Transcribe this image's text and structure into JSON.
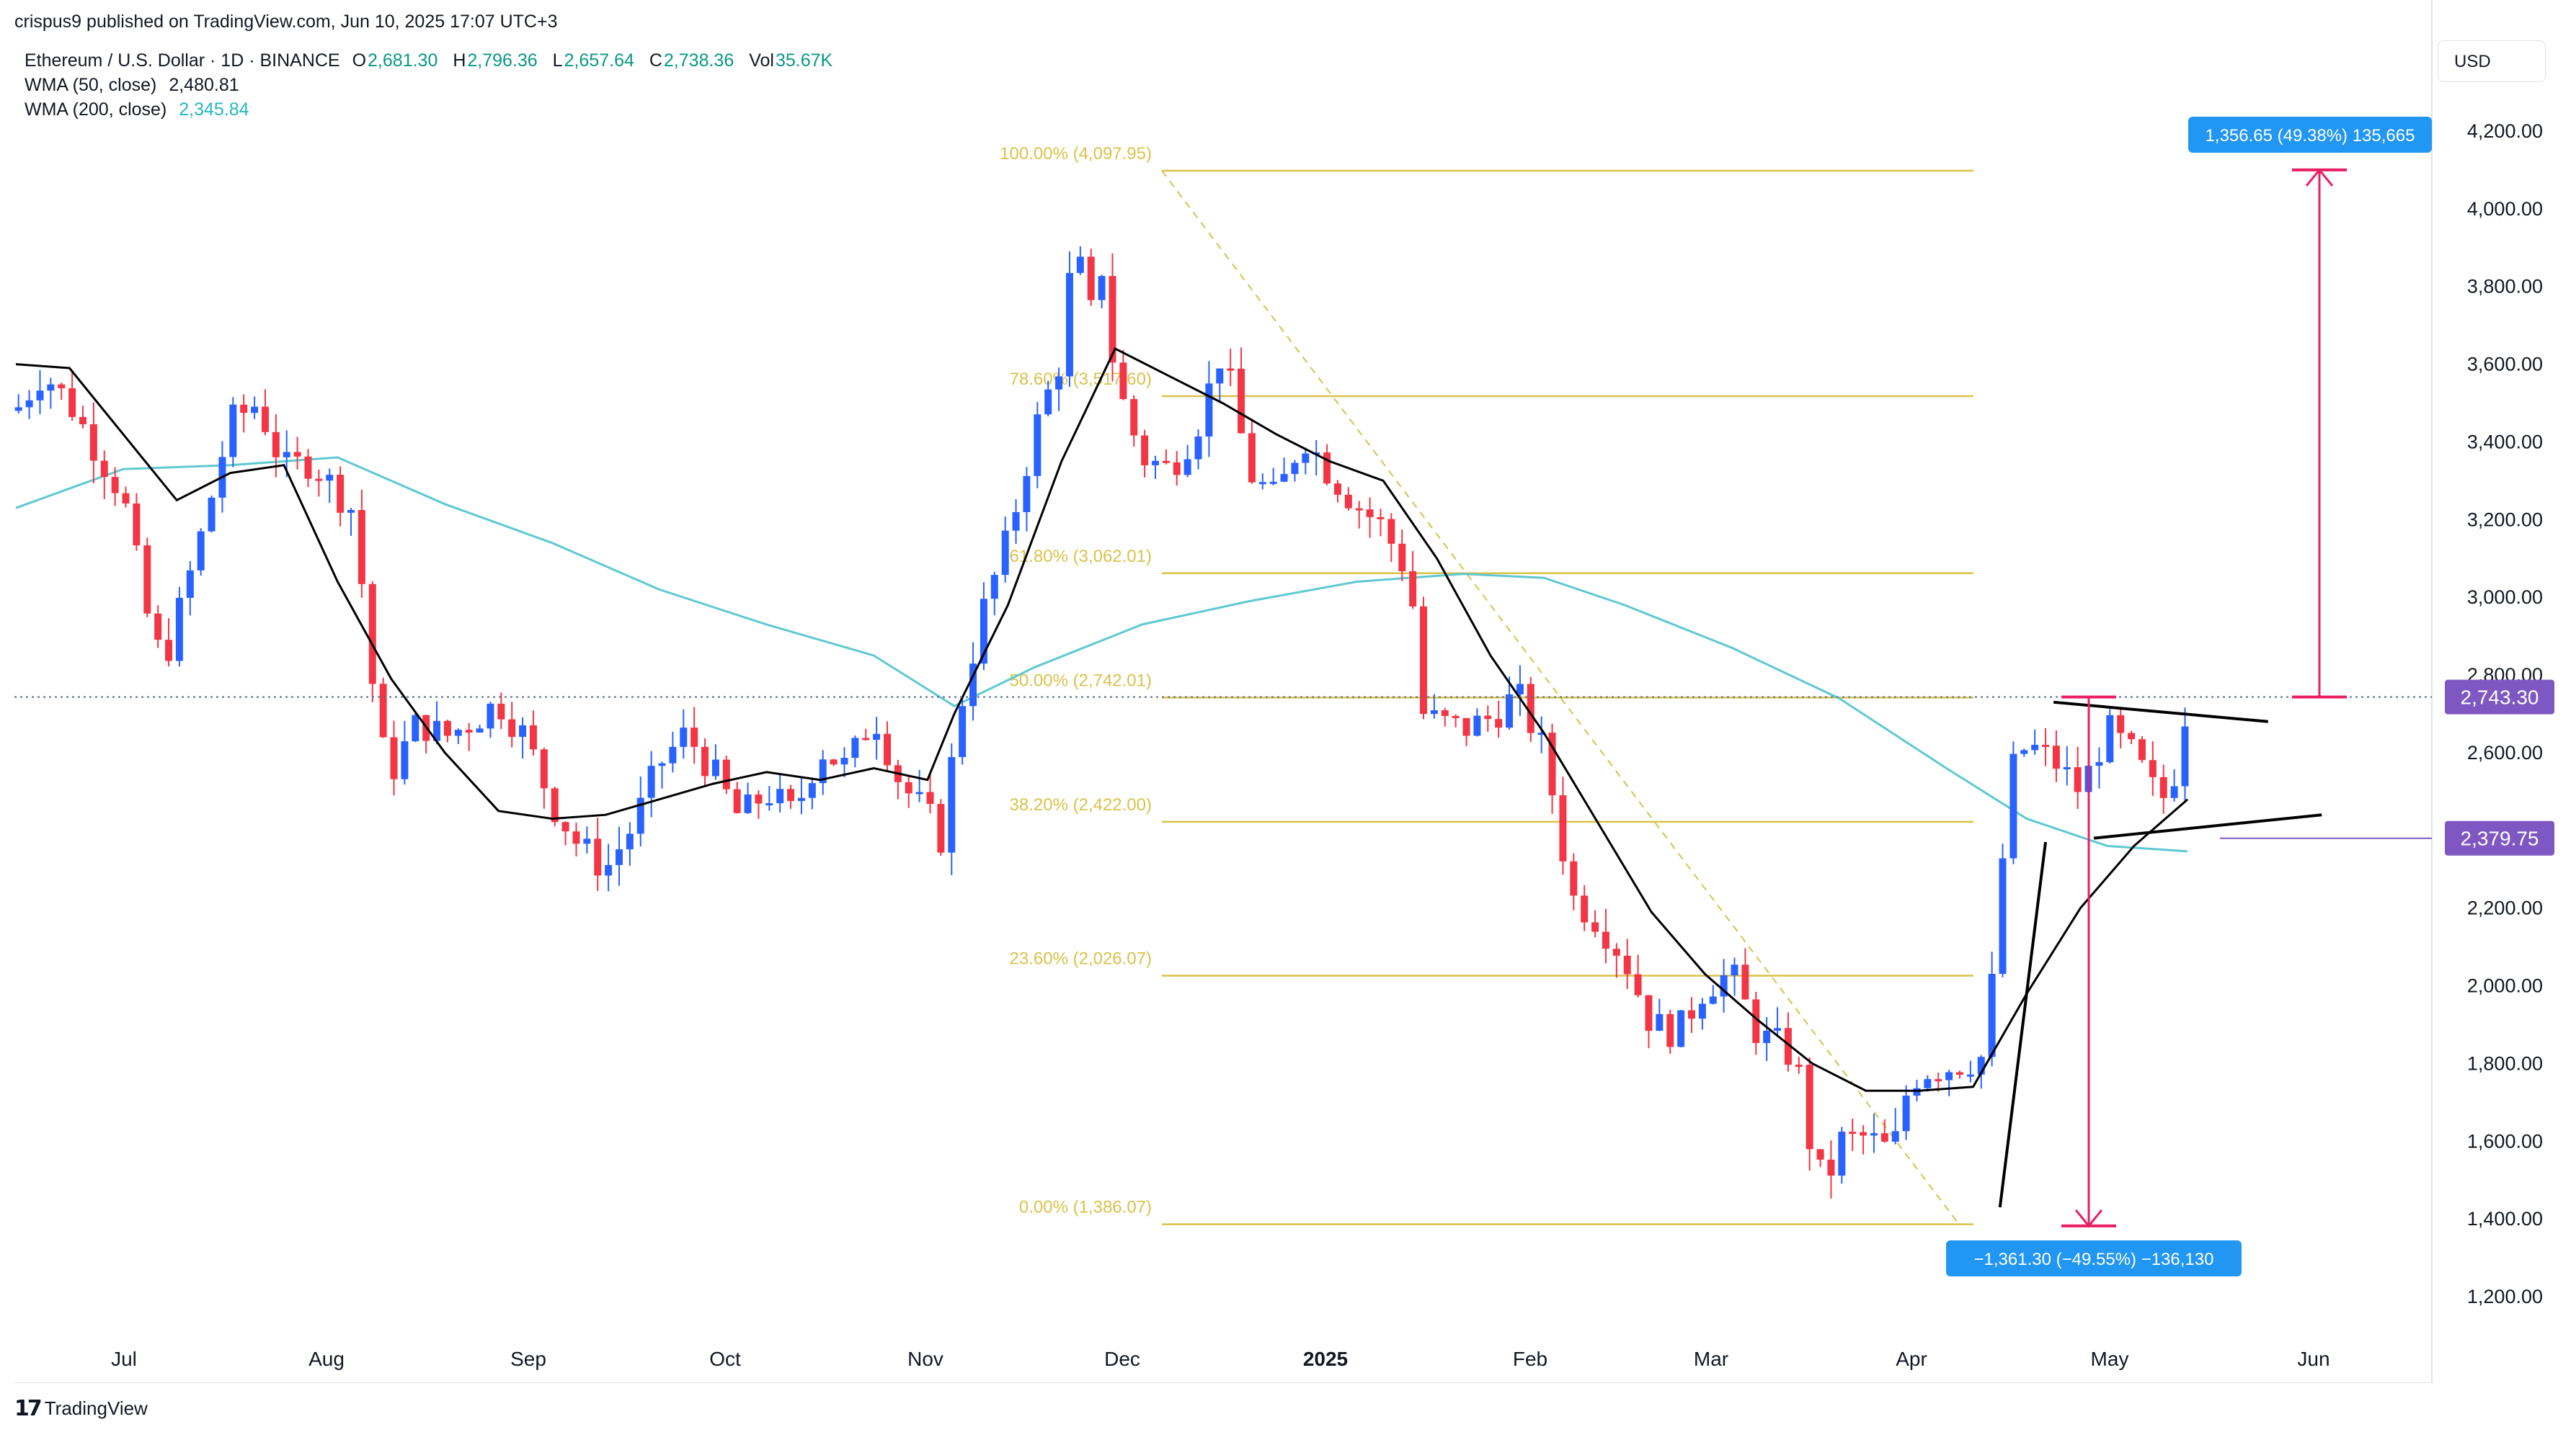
{
  "header": {
    "published_by": "crispus9 published on TradingView.com, Jun 10, 2025 17:07 UTC+3"
  },
  "legend": {
    "symbol": "Ethereum / U.S. Dollar · 1D · BINANCE",
    "open_label": "O",
    "open": "2,681.30",
    "high_label": "H",
    "high": "2,796.36",
    "low_label": "L",
    "low": "2,657.64",
    "close_label": "C",
    "close": "2,738.36",
    "vol_label": "Vol",
    "volume": "35.67K",
    "wma50_label": "WMA (50, close)",
    "wma50_value": "2,480.81",
    "wma200_label": "WMA (200, close)",
    "wma200_value": "2,345.84"
  },
  "currency": "USD",
  "footer": {
    "brand": "TradingView"
  },
  "colors": {
    "up": "#2962ff",
    "down": "#f23645",
    "wma50": "#000000",
    "wma200": "#5ec9d1",
    "fib": "#d9c24a",
    "measure_up": "#2196f3",
    "measure_line": "#e91e63",
    "price_tag": "#7e57c2"
  },
  "chart_data": {
    "type": "candlestick",
    "x_axis_labels": [
      "Jul",
      "Aug",
      "Sep",
      "Oct",
      "Nov",
      "Dec",
      "2025",
      "Feb",
      "Mar",
      "Apr",
      "May",
      "Jun"
    ],
    "y_ticks": [
      "1,200.00",
      "1,400.00",
      "1,600.00",
      "1,800.00",
      "2,000.00",
      "2,200.00",
      "2,400.00",
      "2,600.00",
      "2,800.00",
      "3,000.00",
      "3,200.00",
      "3,400.00",
      "3,600.00",
      "3,800.00",
      "4,000.00",
      "4,200.00"
    ],
    "y_tick_values": [
      1200,
      1400,
      1600,
      1800,
      2000,
      2200,
      2400,
      2600,
      2800,
      3000,
      3200,
      3400,
      3600,
      3800,
      4000,
      4200
    ],
    "ylim": [
      1100,
      4350
    ],
    "grid": false,
    "close_path": [
      [
        0,
        3480
      ],
      [
        10,
        3580
      ],
      [
        20,
        3500
      ],
      [
        30,
        3380
      ],
      [
        40,
        3260
      ],
      [
        50,
        2920
      ],
      [
        55,
        2830
      ],
      [
        60,
        2940
      ],
      [
        70,
        3180
      ],
      [
        80,
        3450
      ],
      [
        90,
        3500
      ],
      [
        100,
        3330
      ],
      [
        110,
        3350
      ],
      [
        125,
        3230
      ],
      [
        130,
        2990
      ],
      [
        135,
        2640
      ],
      [
        140,
        2550
      ],
      [
        150,
        2680
      ],
      [
        160,
        2640
      ],
      [
        170,
        2680
      ],
      [
        180,
        2730
      ],
      [
        190,
        2640
      ],
      [
        200,
        2470
      ],
      [
        210,
        2360
      ],
      [
        220,
        2300
      ],
      [
        230,
        2410
      ],
      [
        240,
        2570
      ],
      [
        250,
        2650
      ],
      [
        260,
        2550
      ],
      [
        270,
        2430
      ],
      [
        280,
        2500
      ],
      [
        290,
        2440
      ],
      [
        300,
        2610
      ],
      [
        310,
        2560
      ],
      [
        320,
        2700
      ],
      [
        330,
        2520
      ],
      [
        340,
        2440
      ],
      [
        345,
        2380
      ],
      [
        352,
        2710
      ],
      [
        360,
        2950
      ],
      [
        370,
        3150
      ],
      [
        380,
        3430
      ],
      [
        390,
        3620
      ],
      [
        395,
        3940
      ],
      [
        400,
        3700
      ],
      [
        405,
        3850
      ],
      [
        410,
        3560
      ],
      [
        420,
        3360
      ],
      [
        430,
        3330
      ],
      [
        440,
        3430
      ],
      [
        450,
        3640
      ],
      [
        460,
        3320
      ],
      [
        470,
        3250
      ],
      [
        480,
        3420
      ],
      [
        490,
        3320
      ],
      [
        500,
        3240
      ],
      [
        510,
        3180
      ],
      [
        520,
        3050
      ],
      [
        525,
        2700
      ],
      [
        530,
        2680
      ],
      [
        540,
        2660
      ],
      [
        550,
        2690
      ],
      [
        560,
        2750
      ],
      [
        570,
        2600
      ],
      [
        575,
        2430
      ],
      [
        580,
        2230
      ],
      [
        590,
        2170
      ],
      [
        600,
        2070
      ],
      [
        610,
        1900
      ],
      [
        620,
        1880
      ],
      [
        630,
        2000
      ],
      [
        640,
        2030
      ],
      [
        650,
        1870
      ],
      [
        660,
        1840
      ],
      [
        665,
        1770
      ],
      [
        670,
        1560
      ],
      [
        675,
        1480
      ],
      [
        680,
        1600
      ],
      [
        690,
        1610
      ],
      [
        700,
        1570
      ],
      [
        705,
        1720
      ],
      [
        710,
        1780
      ],
      [
        720,
        1790
      ],
      [
        730,
        1810
      ],
      [
        735,
        1820
      ],
      [
        740,
        2270
      ],
      [
        745,
        2560
      ],
      [
        750,
        2620
      ],
      [
        760,
        2580
      ],
      [
        770,
        2500
      ],
      [
        780,
        2660
      ],
      [
        790,
        2590
      ],
      [
        800,
        2470
      ],
      [
        805,
        2550
      ],
      [
        810,
        2738
      ]
    ],
    "wma50_path": [
      [
        0,
        3600
      ],
      [
        20,
        3590
      ],
      [
        40,
        3420
      ],
      [
        60,
        3250
      ],
      [
        80,
        3320
      ],
      [
        100,
        3340
      ],
      [
        120,
        3040
      ],
      [
        140,
        2790
      ],
      [
        160,
        2600
      ],
      [
        180,
        2450
      ],
      [
        200,
        2430
      ],
      [
        220,
        2440
      ],
      [
        240,
        2480
      ],
      [
        260,
        2520
      ],
      [
        280,
        2550
      ],
      [
        300,
        2530
      ],
      [
        320,
        2560
      ],
      [
        340,
        2530
      ],
      [
        350,
        2700
      ],
      [
        370,
        2980
      ],
      [
        390,
        3350
      ],
      [
        410,
        3640
      ],
      [
        430,
        3570
      ],
      [
        450,
        3500
      ],
      [
        470,
        3420
      ],
      [
        490,
        3350
      ],
      [
        510,
        3300
      ],
      [
        530,
        3100
      ],
      [
        550,
        2850
      ],
      [
        570,
        2650
      ],
      [
        590,
        2420
      ],
      [
        610,
        2190
      ],
      [
        630,
        2030
      ],
      [
        650,
        1910
      ],
      [
        670,
        1800
      ],
      [
        690,
        1730
      ],
      [
        710,
        1730
      ],
      [
        730,
        1740
      ],
      [
        750,
        1980
      ],
      [
        770,
        2200
      ],
      [
        790,
        2360
      ],
      [
        810,
        2480
      ]
    ],
    "wma200_path": [
      [
        0,
        3230
      ],
      [
        40,
        3330
      ],
      [
        80,
        3340
      ],
      [
        120,
        3360
      ],
      [
        160,
        3240
      ],
      [
        200,
        3140
      ],
      [
        240,
        3020
      ],
      [
        280,
        2930
      ],
      [
        320,
        2850
      ],
      [
        350,
        2720
      ],
      [
        380,
        2820
      ],
      [
        420,
        2930
      ],
      [
        460,
        2990
      ],
      [
        500,
        3040
      ],
      [
        540,
        3060
      ],
      [
        570,
        3050
      ],
      [
        600,
        2980
      ],
      [
        640,
        2870
      ],
      [
        680,
        2740
      ],
      [
        720,
        2560
      ],
      [
        750,
        2430
      ],
      [
        780,
        2360
      ],
      [
        810,
        2346
      ]
    ],
    "fibonacci": {
      "start_price": 4097.95,
      "end_price": 1386.07,
      "levels": [
        {
          "label": "100.00% (4,097.95)",
          "value": 4097.95
        },
        {
          "label": "78.60% (3,517.60)",
          "value": 3517.6
        },
        {
          "label": "61.80% (3,062.01)",
          "value": 3062.01
        },
        {
          "label": "50.00% (2,742.01)",
          "value": 2742.01
        },
        {
          "label": "38.20% (2,422.00)",
          "value": 2422.0
        },
        {
          "label": "23.60% (2,026.07)",
          "value": 2026.07
        },
        {
          "label": "0.00% (1,386.07)",
          "value": 1386.07
        }
      ]
    },
    "price_tags": [
      {
        "label": "2,743.30",
        "value": 2743.3
      },
      {
        "label": "2,379.75",
        "value": 2379.75
      }
    ],
    "measurements": [
      {
        "label": "1,356.65 (49.38%) 135,665",
        "from": 2743.3,
        "to": 4100
      },
      {
        "label": "−1,361.30 (−49.55%) −136,130",
        "from": 2743.3,
        "to": 1382
      }
    ],
    "trendlines": [
      {
        "from": [
          760,
          2730
        ],
        "to": [
          840,
          2680
        ]
      },
      {
        "from": [
          775,
          2380
        ],
        "to": [
          860,
          2440
        ]
      },
      {
        "from": [
          740,
          1430
        ],
        "to": [
          757,
          2370
        ]
      }
    ]
  }
}
